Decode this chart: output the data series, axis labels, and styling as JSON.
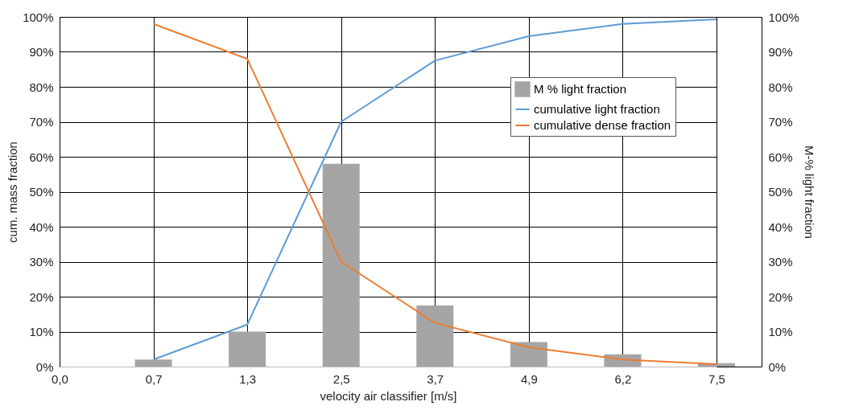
{
  "chart_data": {
    "type": "bar",
    "xlabel": "velocity air classifier [m/s]",
    "ylabel": "cum. mass fraction",
    "y2label": "M-%  light fraction",
    "categories": [
      "0,0",
      "0,7",
      "1,3",
      "2,5",
      "3,7",
      "4,9",
      "6,2",
      "7,5"
    ],
    "series": [
      {
        "name": "M % light fraction",
        "axis": "y2",
        "color": "#a5a5a5",
        "values": [
          null,
          2,
          10,
          58,
          17.5,
          7,
          3.5,
          1
        ]
      },
      {
        "name": "cumulative light fraction",
        "type": "line",
        "color": "#5b9bd5",
        "values": [
          null,
          2,
          12,
          70,
          87.5,
          94.5,
          98,
          99.3
        ]
      },
      {
        "name": "cumulative dense fraction",
        "type": "line",
        "color": "#ed7d31",
        "values": [
          null,
          98,
          88,
          30,
          12.5,
          5.5,
          2,
          0.7
        ]
      }
    ],
    "ylim": [
      0,
      100
    ],
    "yticks": [
      {
        "value": 0,
        "label": "0%"
      },
      {
        "value": 10,
        "label": "10%"
      },
      {
        "value": 20,
        "label": "20%"
      },
      {
        "value": 30,
        "label": "30%"
      },
      {
        "value": 40,
        "label": "40%"
      },
      {
        "value": 50,
        "label": "50%"
      },
      {
        "value": 60,
        "label": "60%"
      },
      {
        "value": 70,
        "label": "70%"
      },
      {
        "value": 80,
        "label": "80%"
      },
      {
        "value": 90,
        "label": "90%"
      },
      {
        "value": 100,
        "label": "100%"
      }
    ],
    "y2lim": [
      0,
      100
    ],
    "y2ticks": [
      {
        "value": 0,
        "label": "0%"
      },
      {
        "value": 10,
        "label": "10%"
      },
      {
        "value": 20,
        "label": "20%"
      },
      {
        "value": 30,
        "label": "30%"
      },
      {
        "value": 40,
        "label": "40%"
      },
      {
        "value": 50,
        "label": "50%"
      },
      {
        "value": 60,
        "label": "60%"
      },
      {
        "value": 70,
        "label": "70%"
      },
      {
        "value": 80,
        "label": "80%"
      },
      {
        "value": 90,
        "label": "90%"
      },
      {
        "value": 100,
        "label": "100%"
      }
    ],
    "grid": true,
    "legend": "top right"
  }
}
